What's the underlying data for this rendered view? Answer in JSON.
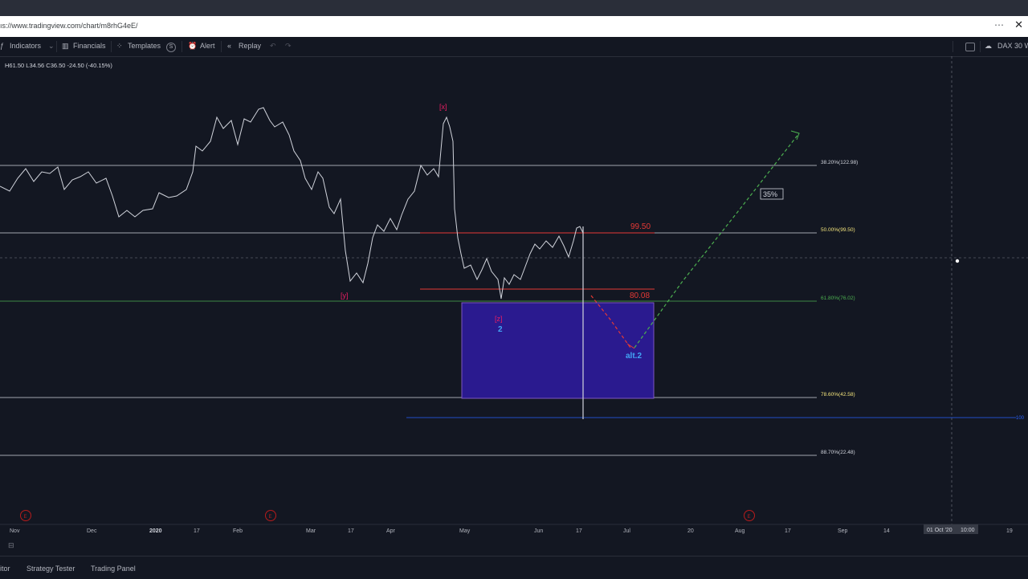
{
  "browser": {
    "url": "ıs://www.tradingview.com/chart/m8rhG4eE/",
    "menu_icon": "ellipsis-icon",
    "close_label": "✕"
  },
  "toolbar": {
    "indicators": "Indicators",
    "financials": "Financials",
    "templates": "Templates",
    "alert": "Alert",
    "replay": "Replay",
    "symbol": "DAX 30 W"
  },
  "legend": {
    "ohlc": "H61.50  L34.56  C36.50  -24.50 (-40.15%)"
  },
  "chart_data": {
    "type": "line",
    "fib_levels": [
      {
        "label": "38.20%(122.98)",
        "color": "#d1d4dc"
      },
      {
        "label": "50.00%(99.50)",
        "color": "#f2e37b"
      },
      {
        "label": "61.80%(76.02)",
        "color": "#4caf50"
      },
      {
        "label": "78.60%(42.58)",
        "color": "#f2e37b"
      },
      {
        "label": "88.70%(22.48)",
        "color": "#d1d4dc"
      }
    ],
    "red_levels": [
      "99.50",
      "80.08"
    ],
    "wave_labels": [
      "[x]",
      "[y]",
      "[z]",
      "2",
      "alt.2"
    ],
    "percent_box": "35%",
    "right_axis_label": "100",
    "x_ticks": [
      "Nov",
      "Dec",
      "2020",
      "17",
      "Feb",
      "Mar",
      "17",
      "Apr",
      "May",
      "Jun",
      "17",
      "Jul",
      "20",
      "Aug",
      "17",
      "Sep",
      "14",
      "19"
    ],
    "crosshair_date": "01 Oct '20",
    "crosshair_time": "10:00",
    "event_marker": "E",
    "colors": {
      "background": "#131722",
      "bars": "#d1d4dc",
      "target_box": "#2a1a8f",
      "wave_pink": "#e91e63",
      "wave_blue": "#42a5f5",
      "projection_green": "#4caf50",
      "projection_red": "#e53935"
    }
  },
  "bottom": {
    "editor": "itor",
    "strategy": "Strategy Tester",
    "panel": "Trading Panel"
  }
}
